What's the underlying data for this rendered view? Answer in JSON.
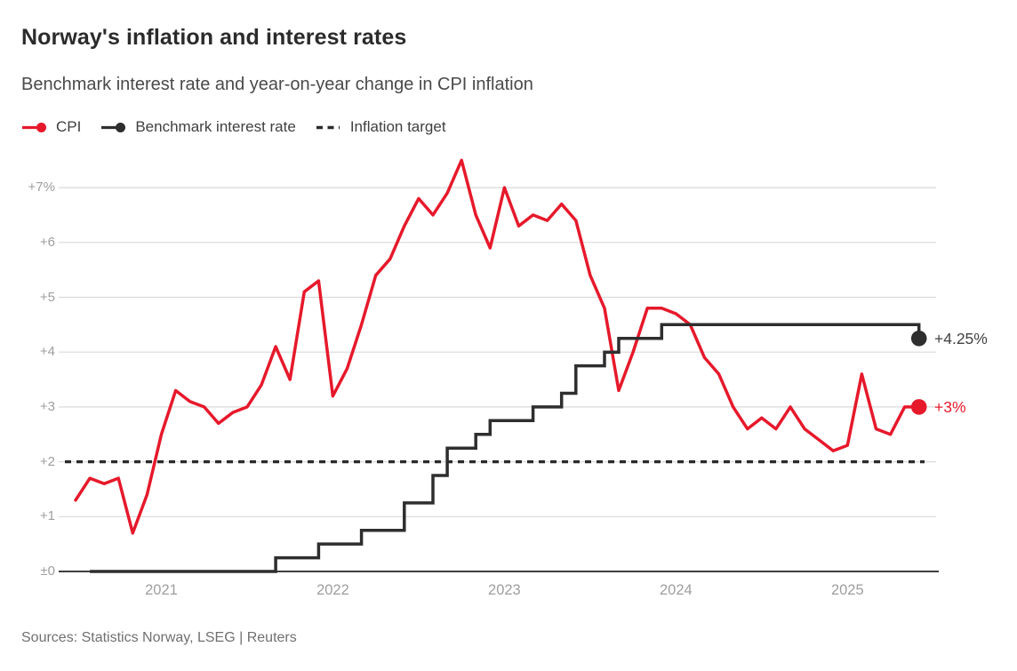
{
  "header": {
    "title": "Norway's inflation and interest rates",
    "subtitle": "Benchmark interest rate and year-on-year change in CPI inflation"
  },
  "legend": {
    "items": [
      {
        "label": "CPI",
        "marker": "line-dot",
        "color": "#e6192b"
      },
      {
        "label": "Benchmark interest rate",
        "marker": "line-dot",
        "color": "#2e2e2e"
      },
      {
        "label": "Inflation target",
        "marker": "dashes",
        "color": "#2b2b2b"
      }
    ]
  },
  "chart_data": {
    "type": "line",
    "title": "Norway's inflation and interest rates",
    "subtitle": "Benchmark interest rate and year-on-year change in CPI inflation",
    "legend_position": "top-left",
    "x_axis": {
      "frequency": "monthly",
      "start_month": "2020-07",
      "end_month": "2025-06",
      "tick_labels": [
        "2021",
        "2022",
        "2023",
        "2024",
        "2025"
      ],
      "tick_months": [
        "2021-01",
        "2022-01",
        "2023-01",
        "2024-01",
        "2025-01"
      ]
    },
    "y_axis": {
      "unit": "%",
      "range": [
        0,
        7.6
      ],
      "grid": true,
      "ticks": [
        {
          "value": 7,
          "label": "+7%"
        },
        {
          "value": 6,
          "label": "+6"
        },
        {
          "value": 5,
          "label": "+5"
        },
        {
          "value": 4,
          "label": "+4"
        },
        {
          "value": 3,
          "label": "+3"
        },
        {
          "value": 2,
          "label": "+2"
        },
        {
          "value": 1,
          "label": "+1"
        },
        {
          "value": 0,
          "label": "±0"
        }
      ]
    },
    "series": [
      {
        "name": "CPI",
        "type": "line",
        "color": "#e6192b",
        "start_month": "2020-07",
        "values": [
          1.3,
          1.7,
          1.6,
          1.7,
          0.7,
          1.4,
          2.5,
          3.3,
          3.1,
          3.0,
          2.7,
          2.9,
          3.0,
          3.4,
          4.1,
          3.5,
          5.1,
          5.3,
          3.2,
          3.7,
          4.5,
          5.4,
          5.7,
          6.3,
          6.8,
          6.5,
          6.9,
          7.5,
          6.5,
          5.9,
          7.0,
          6.3,
          6.5,
          6.4,
          6.7,
          6.4,
          5.4,
          4.8,
          3.3,
          4.0,
          4.8,
          4.8,
          4.7,
          4.5,
          3.9,
          3.6,
          3.0,
          2.6,
          2.8,
          2.6,
          3.0,
          2.6,
          2.4,
          2.2,
          2.3,
          3.6,
          2.6,
          2.5,
          3.0,
          3.0
        ],
        "end_value": 3.0,
        "end_label": "+3%"
      },
      {
        "name": "Benchmark interest rate",
        "type": "step",
        "color": "#2e2e2e",
        "steps": [
          [
            "2020-08",
            0
          ],
          [
            "2021-09",
            0.25
          ],
          [
            "2021-12",
            0.5
          ],
          [
            "2022-03",
            0.75
          ],
          [
            "2022-06",
            1.25
          ],
          [
            "2022-08",
            1.75
          ],
          [
            "2022-09",
            2.25
          ],
          [
            "2022-11",
            2.5
          ],
          [
            "2022-12",
            2.75
          ],
          [
            "2023-03",
            3.0
          ],
          [
            "2023-05",
            3.25
          ],
          [
            "2023-06",
            3.75
          ],
          [
            "2023-08",
            4.0
          ],
          [
            "2023-09",
            4.25
          ],
          [
            "2023-12",
            4.5
          ],
          [
            "2025-06",
            4.25
          ]
        ],
        "end_value": 4.25,
        "end_label": "+4.25%"
      },
      {
        "name": "Inflation target",
        "type": "dashed-line",
        "color": "#2b2b2b",
        "value": 2.0
      }
    ]
  },
  "footer": {
    "source": "Sources: Statistics Norway, LSEG | Reuters"
  }
}
